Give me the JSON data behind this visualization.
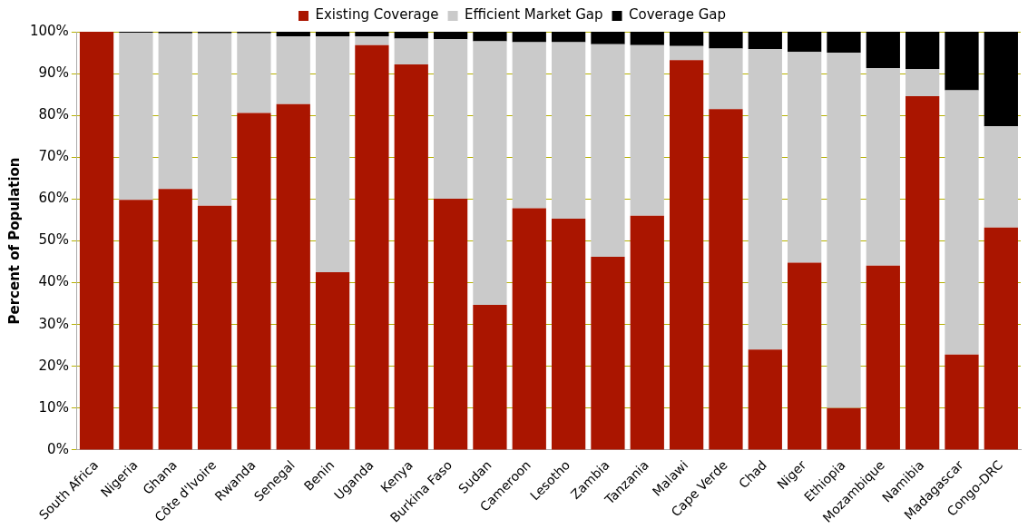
{
  "chart_data": {
    "type": "bar",
    "stacked": true,
    "ylabel": "Percent of Population",
    "legend": "top",
    "grid": "y",
    "categories": [
      "South Africa",
      "Nigeria",
      "Ghana",
      "Côte d'Ivoire",
      "Rwanda",
      "Senegal",
      "Benin",
      "Uganda",
      "Kenya",
      "Burkina Faso",
      "Sudan",
      "Cameroon",
      "Lesotho",
      "Zambia",
      "Tanzania",
      "Malawi",
      "Cape Verde",
      "Chad",
      "Niger",
      "Ethiopia",
      "Mozambique",
      "Namibia",
      "Madagascar",
      "Congo-DRC"
    ],
    "series": [
      {
        "name": "Existing Coverage",
        "color": "#aa1500",
        "values": [
          100,
          59.8,
          62.4,
          58.4,
          80.6,
          82.7,
          42.5,
          96.8,
          92.2,
          60.1,
          34.7,
          57.8,
          55.3,
          46.2,
          56.0,
          93.2,
          81.5,
          24.0,
          44.8,
          10.0,
          44.1,
          84.6,
          22.8,
          53.2
        ]
      },
      {
        "name": "Efficient Market Gap",
        "color": "#cacaca",
        "values": [
          0,
          40.0,
          37.2,
          41.2,
          19.0,
          16.2,
          56.4,
          2.1,
          6.2,
          38.1,
          63.0,
          39.7,
          42.2,
          50.8,
          40.8,
          3.4,
          14.5,
          71.9,
          50.4,
          85.0,
          47.2,
          6.5,
          63.2,
          24.2
        ]
      },
      {
        "name": "Coverage Gap",
        "color": "#000000",
        "values": [
          0,
          0.2,
          0.4,
          0.4,
          0.4,
          1.1,
          1.1,
          1.1,
          1.6,
          1.8,
          2.3,
          2.5,
          2.5,
          3.0,
          3.2,
          3.4,
          4.0,
          4.1,
          4.8,
          5.0,
          8.7,
          8.9,
          14.0,
          22.6
        ]
      }
    ],
    "ylim": [
      0,
      100
    ],
    "yticks": [
      {
        "value": 0,
        "label": "0%"
      },
      {
        "value": 10,
        "label": "10%"
      },
      {
        "value": 20,
        "label": "20%"
      },
      {
        "value": 30,
        "label": "30%"
      },
      {
        "value": 40,
        "label": "40%"
      },
      {
        "value": 50,
        "label": "50%"
      },
      {
        "value": 60,
        "label": "60%"
      },
      {
        "value": 70,
        "label": "70%"
      },
      {
        "value": 80,
        "label": "80%"
      },
      {
        "value": 90,
        "label": "90%"
      },
      {
        "value": 100,
        "label": "100%"
      }
    ]
  }
}
